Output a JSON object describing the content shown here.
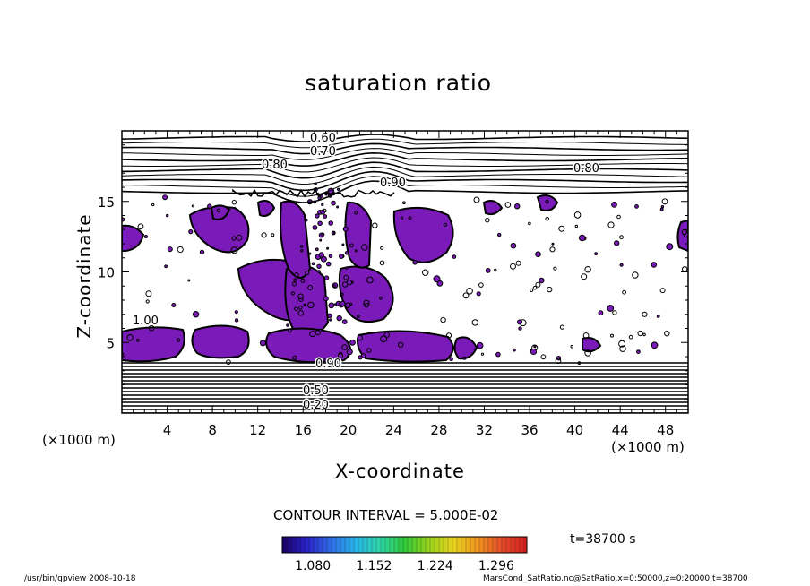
{
  "chart_data": {
    "type": "contour",
    "title": "saturation ratio",
    "xlabel": "X-coordinate",
    "ylabel": "Z-coordinate",
    "x_unit_left": "(×1000 m)",
    "x_unit_right": "(×1000 m)",
    "xlim": [
      0,
      50
    ],
    "ylim": [
      0,
      20
    ],
    "x_ticks": [
      4,
      8,
      12,
      16,
      20,
      24,
      28,
      32,
      36,
      40,
      44,
      48
    ],
    "y_ticks": [
      5,
      10,
      15
    ],
    "contour_interval_label": "CONTOUR INTERVAL = 5.000E-02",
    "contour_labels": [
      "0.60",
      "0.70",
      "0.80",
      "0.80",
      "0.90",
      "1.00",
      "0.90",
      "0.50",
      "0.20"
    ],
    "shade_color": "#7a1ab8",
    "colorbar": {
      "ticks": [
        "1.080",
        "1.152",
        "1.224",
        "1.296"
      ],
      "range": [
        1.044,
        1.332
      ],
      "colors": [
        "#1a0066",
        "#2a23c8",
        "#2f6de6",
        "#27b4e8",
        "#2fd6a8",
        "#2fca3a",
        "#9ad21c",
        "#e7d21e",
        "#f0951f",
        "#e64a2a",
        "#d52020"
      ]
    },
    "time_label": "t=38700 s"
  },
  "footer": {
    "left": "/usr/bin/gpview   2008-10-18",
    "right": "MarsCond_SatRatio.nc@SatRatio,x=0:50000,z=0:20000,t=38700"
  }
}
